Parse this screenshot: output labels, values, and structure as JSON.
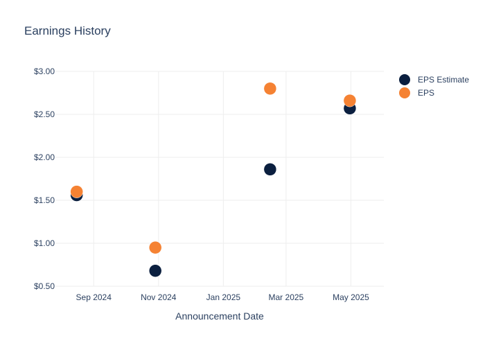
{
  "chart_data": {
    "type": "scatter",
    "title": "Earnings History",
    "xlabel": "Announcement Date",
    "ylabel": "",
    "ylim": [
      0.5,
      3.0
    ],
    "xlim": [
      "2024-07-27",
      "2025-06-01"
    ],
    "x_ticks": [
      {
        "date": "2024-09-01",
        "label": "Sep 2024"
      },
      {
        "date": "2024-11-01",
        "label": "Nov 2024"
      },
      {
        "date": "2025-01-01",
        "label": "Jan 2025"
      },
      {
        "date": "2025-03-01",
        "label": "Mar 2025"
      },
      {
        "date": "2025-05-01",
        "label": "May 2025"
      }
    ],
    "y_ticks": [
      {
        "value": 0.5,
        "label": "$0.50"
      },
      {
        "value": 1.0,
        "label": "$1.00"
      },
      {
        "value": 1.5,
        "label": "$1.50"
      },
      {
        "value": 2.0,
        "label": "$2.00"
      },
      {
        "value": 2.5,
        "label": "$2.50"
      },
      {
        "value": 3.0,
        "label": "$3.00"
      }
    ],
    "grid": true,
    "legend_position": "top-right",
    "series": [
      {
        "name": "EPS Estimate",
        "color": "#0b1f3f",
        "points": [
          {
            "x": "2024-08-16",
            "y": 1.56
          },
          {
            "x": "2024-10-29",
            "y": 0.68
          },
          {
            "x": "2025-02-14",
            "y": 1.86
          },
          {
            "x": "2025-04-30",
            "y": 2.57
          }
        ]
      },
      {
        "name": "EPS",
        "color": "#f58233",
        "points": [
          {
            "x": "2024-08-16",
            "y": 1.6
          },
          {
            "x": "2024-10-29",
            "y": 0.95
          },
          {
            "x": "2025-02-14",
            "y": 2.8
          },
          {
            "x": "2025-04-30",
            "y": 2.66
          }
        ]
      }
    ]
  }
}
